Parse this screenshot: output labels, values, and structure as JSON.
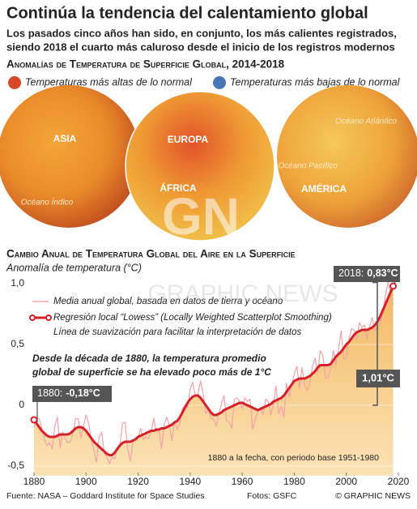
{
  "header": {
    "title": "Continúa la tendencia del calentamiento global",
    "subtitle_lines": [
      "Los pasados cinco años han sido, en conjunto, los más calientes registrados,",
      "siendo 2018 el cuarto más caluroso desde el inicio de los registros modernos"
    ],
    "section": "Anomalías  de Temperatura de Superficie Global, 2014-2018"
  },
  "map_legend": {
    "warm": "Temperaturas más altas de lo normal",
    "cold": "Temperaturas más bajas de lo normal"
  },
  "globes": [
    {
      "labels": [
        "ASIA",
        "Océano Índico"
      ]
    },
    {
      "labels": [
        "EUROPA",
        "ÁFRICA"
      ]
    },
    {
      "labels": [
        "Océano Atlántico",
        "Océano Pacífico",
        "AMÉRICA"
      ]
    }
  ],
  "watermark": {
    "logo": "GN",
    "text": "GRAPHIC NEWS"
  },
  "chart_data": {
    "type": "line",
    "title": "Cambio Anual de Temperatura Global del Aire en la Superficie",
    "ylabel": "Anomalía de temperatura  (°C)",
    "x": [
      1880,
      1881,
      1882,
      1883,
      1884,
      1885,
      1886,
      1887,
      1888,
      1889,
      1890,
      1891,
      1892,
      1893,
      1894,
      1895,
      1896,
      1897,
      1898,
      1899,
      1900,
      1901,
      1902,
      1903,
      1904,
      1905,
      1906,
      1907,
      1908,
      1909,
      1910,
      1911,
      1912,
      1913,
      1914,
      1915,
      1916,
      1917,
      1918,
      1919,
      1920,
      1921,
      1922,
      1923,
      1924,
      1925,
      1926,
      1927,
      1928,
      1929,
      1930,
      1931,
      1932,
      1933,
      1934,
      1935,
      1936,
      1937,
      1938,
      1939,
      1940,
      1941,
      1942,
      1943,
      1944,
      1945,
      1946,
      1947,
      1948,
      1949,
      1950,
      1951,
      1952,
      1953,
      1954,
      1955,
      1956,
      1957,
      1958,
      1959,
      1960,
      1961,
      1962,
      1963,
      1964,
      1965,
      1966,
      1967,
      1968,
      1969,
      1970,
      1971,
      1972,
      1973,
      1974,
      1975,
      1976,
      1977,
      1978,
      1979,
      1980,
      1981,
      1982,
      1983,
      1984,
      1985,
      1986,
      1987,
      1988,
      1989,
      1990,
      1991,
      1992,
      1993,
      1994,
      1995,
      1996,
      1997,
      1998,
      1999,
      2000,
      2001,
      2002,
      2003,
      2004,
      2005,
      2006,
      2007,
      2008,
      2009,
      2010,
      2011,
      2012,
      2013,
      2014,
      2015,
      2016,
      2017,
      2018
    ],
    "series": [
      {
        "name": "Media anual global, basada en datos de tierra y océano",
        "color": "#f2a3ab",
        "values": [
          -0.18,
          -0.1,
          -0.11,
          -0.19,
          -0.28,
          -0.33,
          -0.31,
          -0.36,
          -0.17,
          -0.1,
          -0.35,
          -0.22,
          -0.27,
          -0.31,
          -0.3,
          -0.23,
          -0.11,
          -0.11,
          -0.27,
          -0.17,
          -0.08,
          -0.15,
          -0.28,
          -0.37,
          -0.47,
          -0.26,
          -0.22,
          -0.39,
          -0.43,
          -0.48,
          -0.43,
          -0.44,
          -0.36,
          -0.34,
          -0.15,
          -0.14,
          -0.36,
          -0.46,
          -0.3,
          -0.27,
          -0.27,
          -0.19,
          -0.28,
          -0.26,
          -0.27,
          -0.22,
          -0.11,
          -0.22,
          -0.2,
          -0.36,
          -0.16,
          -0.1,
          -0.16,
          -0.29,
          -0.13,
          -0.2,
          -0.15,
          -0.03,
          0.0,
          -0.02,
          0.13,
          0.19,
          0.07,
          0.09,
          0.2,
          0.09,
          -0.07,
          -0.03,
          -0.11,
          -0.11,
          -0.17,
          -0.07,
          0.01,
          0.08,
          -0.13,
          -0.14,
          -0.19,
          0.05,
          0.06,
          0.03,
          -0.03,
          0.06,
          0.03,
          0.05,
          -0.2,
          -0.11,
          -0.06,
          -0.02,
          -0.08,
          0.05,
          0.03,
          -0.08,
          0.01,
          0.16,
          -0.07,
          -0.01,
          -0.1,
          0.18,
          0.07,
          0.16,
          0.26,
          0.32,
          0.14,
          0.31,
          0.16,
          0.12,
          0.18,
          0.32,
          0.39,
          0.27,
          0.45,
          0.41,
          0.22,
          0.23,
          0.31,
          0.45,
          0.33,
          0.46,
          0.61,
          0.38,
          0.39,
          0.54,
          0.63,
          0.62,
          0.53,
          0.68,
          0.64,
          0.66,
          0.54,
          0.65,
          0.72,
          0.61,
          0.64,
          0.68,
          0.75,
          0.9,
          1.01,
          0.92,
          0.83
        ]
      },
      {
        "name": "Regresión local “Lowess” (Locally Weighted Scatterplot Smoothing)",
        "note": "Línea de suavización para facilitar la interpretación de datos",
        "color": "#d6202a",
        "values": [
          -0.12,
          -0.15,
          -0.18,
          -0.21,
          -0.23,
          -0.25,
          -0.26,
          -0.26,
          -0.26,
          -0.25,
          -0.24,
          -0.24,
          -0.24,
          -0.24,
          -0.23,
          -0.21,
          -0.19,
          -0.18,
          -0.18,
          -0.19,
          -0.21,
          -0.24,
          -0.27,
          -0.3,
          -0.32,
          -0.34,
          -0.36,
          -0.38,
          -0.4,
          -0.41,
          -0.41,
          -0.39,
          -0.36,
          -0.33,
          -0.31,
          -0.3,
          -0.3,
          -0.3,
          -0.29,
          -0.28,
          -0.26,
          -0.25,
          -0.24,
          -0.23,
          -0.22,
          -0.21,
          -0.21,
          -0.2,
          -0.2,
          -0.19,
          -0.19,
          -0.18,
          -0.17,
          -0.16,
          -0.14,
          -0.13,
          -0.1,
          -0.06,
          -0.02,
          0.02,
          0.05,
          0.07,
          0.08,
          0.08,
          0.06,
          0.03,
          0.0,
          -0.03,
          -0.06,
          -0.08,
          -0.08,
          -0.07,
          -0.06,
          -0.04,
          -0.03,
          -0.02,
          -0.01,
          0.0,
          0.01,
          0.02,
          0.02,
          0.01,
          0.0,
          -0.01,
          -0.02,
          -0.03,
          -0.04,
          -0.03,
          -0.02,
          -0.01,
          0.0,
          0.01,
          0.03,
          0.04,
          0.05,
          0.06,
          0.08,
          0.11,
          0.14,
          0.17,
          0.2,
          0.21,
          0.22,
          0.22,
          0.22,
          0.23,
          0.24,
          0.26,
          0.28,
          0.31,
          0.33,
          0.33,
          0.33,
          0.33,
          0.34,
          0.37,
          0.4,
          0.42,
          0.44,
          0.47,
          0.5,
          0.52,
          0.55,
          0.58,
          0.6,
          0.61,
          0.62,
          0.62,
          0.62,
          0.63,
          0.64,
          0.66,
          0.69,
          0.73,
          0.78,
          0.83,
          0.88,
          0.93,
          0.98
        ]
      }
    ],
    "xlim": [
      1880,
      2020
    ],
    "xticks": [
      1880,
      1900,
      1920,
      1940,
      1960,
      1980,
      2000,
      2020
    ],
    "ylim": [
      -0.5,
      1.0
    ],
    "yticks": [
      {
        "value": -0.5,
        "label": "-0,5"
      },
      0,
      {
        "value": 0.5,
        "label": "0,5"
      },
      {
        "value": 1.0,
        "label": "1,0"
      }
    ],
    "grid": true,
    "callout_last": {
      "year": "2018:",
      "value": "0,83°C"
    },
    "callout_first": {
      "year": "1880:",
      "value": "-0,18°C"
    },
    "rise": {
      "value": 1.01,
      "label": "1,01°C"
    },
    "annotation_lines": [
      "Desde la década de 1880, la temperatura promedio",
      "global de superficie se ha elevado poco más de 1°C"
    ],
    "baseline_note": "1880 a la fecha, con periodo base 1951-1980"
  },
  "footer": {
    "source": "Fuente: NASA – Goddard Institute for Space Studies",
    "photos": "Fotos: GSFC",
    "credit": "© GRAPHIC NEWS"
  }
}
